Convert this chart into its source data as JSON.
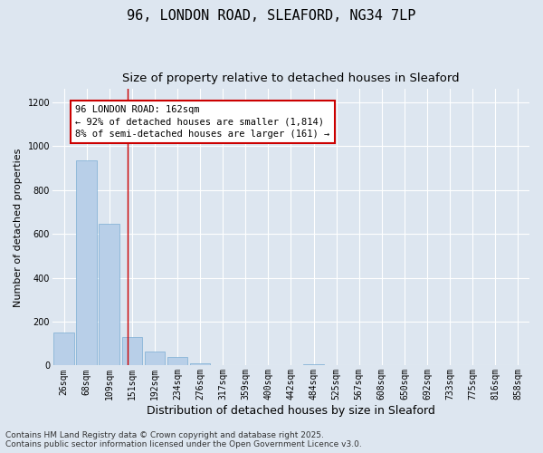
{
  "title": "96, LONDON ROAD, SLEAFORD, NG34 7LP",
  "subtitle": "Size of property relative to detached houses in Sleaford",
  "xlabel": "Distribution of detached houses by size in Sleaford",
  "ylabel": "Number of detached properties",
  "categories": [
    "26sqm",
    "68sqm",
    "109sqm",
    "151sqm",
    "192sqm",
    "234sqm",
    "276sqm",
    "317sqm",
    "359sqm",
    "400sqm",
    "442sqm",
    "484sqm",
    "525sqm",
    "567sqm",
    "608sqm",
    "650sqm",
    "692sqm",
    "733sqm",
    "775sqm",
    "816sqm",
    "858sqm"
  ],
  "values": [
    152,
    935,
    648,
    130,
    65,
    40,
    12,
    0,
    0,
    0,
    0,
    7,
    0,
    0,
    0,
    0,
    0,
    0,
    0,
    0,
    0
  ],
  "bar_color": "#b8cfe8",
  "bar_edge_color": "#7aadd4",
  "bg_color": "#dde6f0",
  "grid_color": "#ffffff",
  "annotation_box_facecolor": "#ffffff",
  "annotation_box_edgecolor": "#cc0000",
  "annotation_text_line1": "96 LONDON ROAD: 162sqm",
  "annotation_text_line2": "← 92% of detached houses are smaller (1,814)",
  "annotation_text_line3": "8% of semi-detached houses are larger (161) →",
  "vline_x_index": 2.82,
  "vline_color": "#cc0000",
  "ylim": [
    0,
    1260
  ],
  "yticks": [
    0,
    200,
    400,
    600,
    800,
    1000,
    1200
  ],
  "footnote1": "Contains HM Land Registry data © Crown copyright and database right 2025.",
  "footnote2": "Contains public sector information licensed under the Open Government Licence v3.0.",
  "title_fontsize": 11,
  "subtitle_fontsize": 9.5,
  "xlabel_fontsize": 9,
  "ylabel_fontsize": 8,
  "tick_fontsize": 7,
  "annotation_fontsize": 7.5,
  "footnote_fontsize": 6.5
}
